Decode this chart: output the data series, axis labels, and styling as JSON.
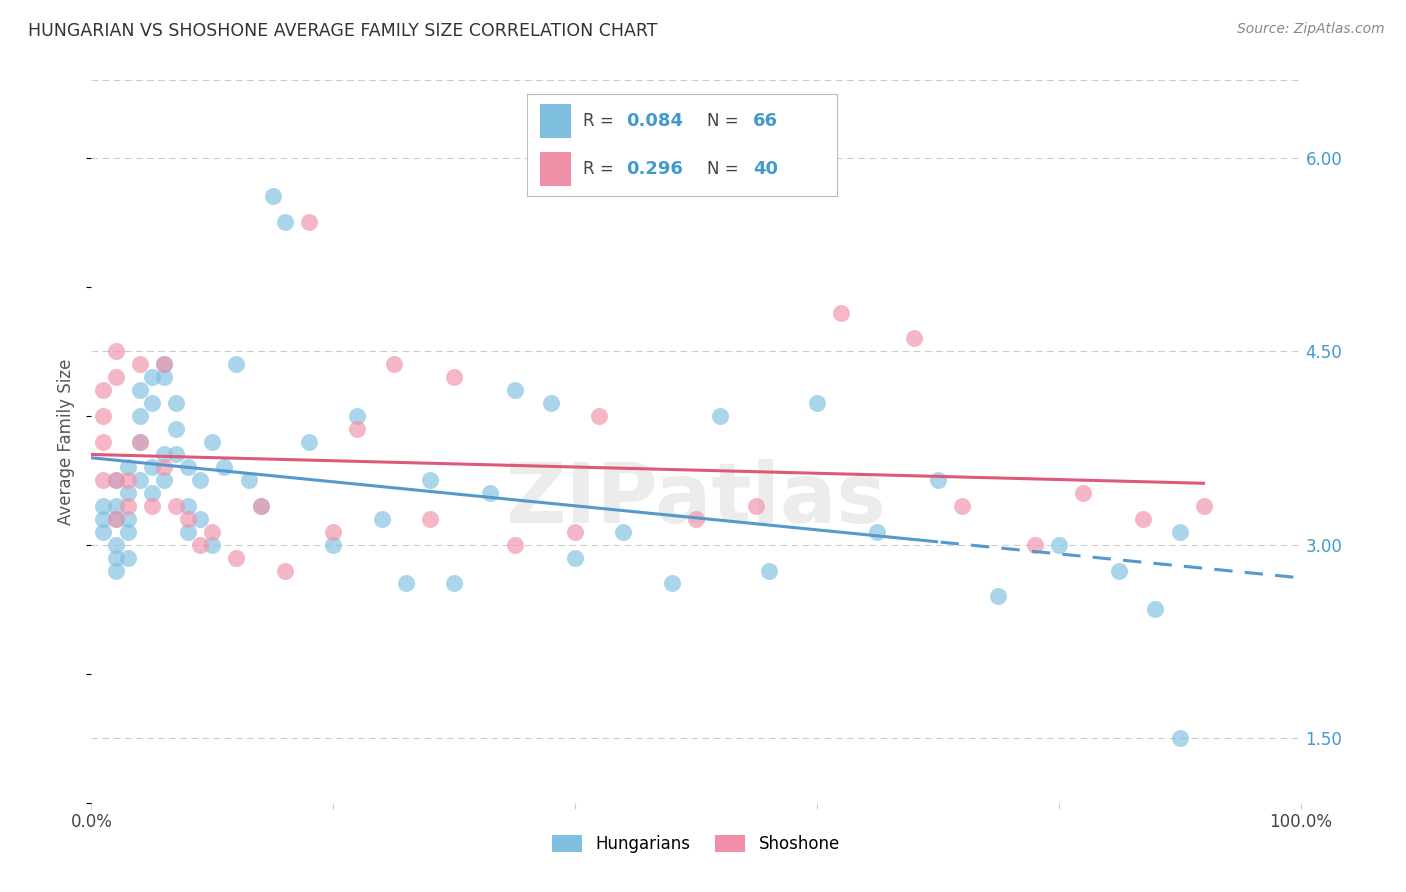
{
  "title": "HUNGARIAN VS SHOSHONE AVERAGE FAMILY SIZE CORRELATION CHART",
  "source": "Source: ZipAtlas.com",
  "ylabel": "Average Family Size",
  "yticks": [
    1.5,
    3.0,
    4.5,
    6.0
  ],
  "ytick_labels": [
    "1.50",
    "3.00",
    "4.50",
    "6.00"
  ],
  "blue_color": "#7fbfdf",
  "pink_color": "#f090a8",
  "blue_line_color": "#5599cc",
  "pink_line_color": "#e05878",
  "background_color": "#ffffff",
  "grid_color": "#cccccc",
  "axis_label_color": "#4499cc",
  "title_color": "#333333",
  "hungarian_x": [
    1,
    1,
    1,
    2,
    2,
    2,
    2,
    2,
    2,
    3,
    3,
    3,
    3,
    3,
    4,
    4,
    4,
    4,
    5,
    5,
    5,
    5,
    6,
    6,
    6,
    6,
    7,
    7,
    7,
    8,
    8,
    8,
    9,
    9,
    10,
    10,
    11,
    12,
    13,
    14,
    15,
    16,
    18,
    20,
    22,
    24,
    26,
    28,
    30,
    33,
    35,
    38,
    40,
    44,
    48,
    52,
    56,
    60,
    65,
    70,
    75,
    80,
    85,
    88,
    90,
    90
  ],
  "hungarian_y": [
    3.3,
    3.2,
    3.1,
    3.5,
    3.3,
    3.2,
    3.0,
    2.9,
    2.8,
    3.6,
    3.4,
    3.2,
    3.1,
    2.9,
    4.2,
    4.0,
    3.8,
    3.5,
    4.3,
    4.1,
    3.6,
    3.4,
    4.4,
    4.3,
    3.7,
    3.5,
    4.1,
    3.9,
    3.7,
    3.6,
    3.3,
    3.1,
    3.5,
    3.2,
    3.8,
    3.0,
    3.6,
    4.4,
    3.5,
    3.3,
    5.7,
    5.5,
    3.8,
    3.0,
    4.0,
    3.2,
    2.7,
    3.5,
    2.7,
    3.4,
    4.2,
    4.1,
    2.9,
    3.1,
    2.7,
    4.0,
    2.8,
    4.1,
    3.1,
    3.5,
    2.6,
    3.0,
    2.8,
    2.5,
    3.1,
    1.5
  ],
  "shoshone_x": [
    1,
    1,
    1,
    1,
    2,
    2,
    2,
    2,
    3,
    3,
    4,
    4,
    5,
    6,
    6,
    7,
    8,
    9,
    10,
    12,
    14,
    16,
    18,
    20,
    22,
    25,
    28,
    30,
    35,
    40,
    42,
    50,
    55,
    62,
    68,
    72,
    78,
    82,
    87,
    92
  ],
  "shoshone_y": [
    4.2,
    4.0,
    3.8,
    3.5,
    4.5,
    4.3,
    3.5,
    3.2,
    3.5,
    3.3,
    4.4,
    3.8,
    3.3,
    4.4,
    3.6,
    3.3,
    3.2,
    3.0,
    3.1,
    2.9,
    3.3,
    2.8,
    5.5,
    3.1,
    3.9,
    4.4,
    3.2,
    4.3,
    3.0,
    3.1,
    4.0,
    3.2,
    3.3,
    4.8,
    4.6,
    3.3,
    3.0,
    3.4,
    3.2,
    3.3
  ],
  "xlim": [
    0,
    100
  ],
  "ylim": [
    1.0,
    6.6
  ],
  "blue_dash_start": 70,
  "watermark": "ZIPatlas"
}
